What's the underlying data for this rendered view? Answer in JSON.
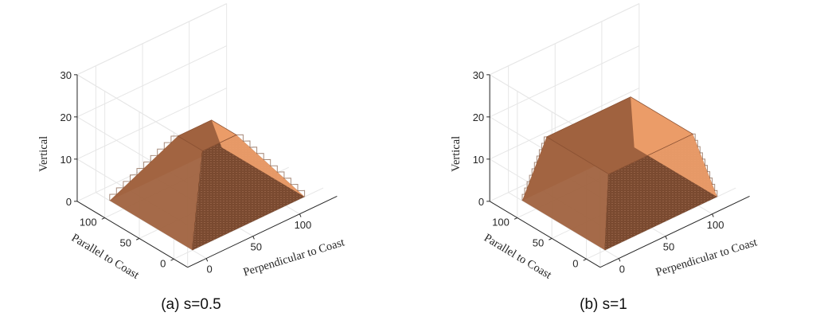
{
  "chart_data": [
    {
      "type": "surface3d",
      "caption": "(a) s=0.5",
      "xlabel": "Perpendicular to Coast",
      "ylabel": "Parallel to Coast",
      "zlabel": "Vertical",
      "xticks": [
        "0",
        "50",
        "100"
      ],
      "yticks": [
        "0",
        "50",
        "100"
      ],
      "zticks": [
        "0",
        "10",
        "20",
        "30"
      ],
      "xlim": [
        -20,
        140
      ],
      "ylim": [
        -20,
        140
      ],
      "zlim": [
        0,
        30
      ],
      "grid": true,
      "view": {
        "azimuth": -37.5,
        "elevation": 30
      },
      "shape": "stepped-frustum",
      "base": {
        "x": [
          0,
          120
        ],
        "y": [
          0,
          120
        ]
      },
      "top": {
        "x": [
          42,
          78
        ],
        "y": [
          42,
          78
        ]
      },
      "height": 15,
      "colors": {
        "front_right": "#f5a46e",
        "front_left": "#7a4a30",
        "back_left": "#a0623f",
        "back_right": "#c07b50",
        "top": "#a0623f"
      }
    },
    {
      "type": "surface3d",
      "caption": "(b) s=1",
      "xlabel": "Perpendicular to Coast",
      "ylabel": "Parallel to Coast",
      "zlabel": "Vertical",
      "xticks": [
        "0",
        "50",
        "100"
      ],
      "yticks": [
        "0",
        "50",
        "100"
      ],
      "zticks": [
        "0",
        "10",
        "20",
        "30"
      ],
      "xlim": [
        -20,
        140
      ],
      "ylim": [
        -20,
        140
      ],
      "zlim": [
        0,
        30
      ],
      "grid": true,
      "view": {
        "azimuth": -37.5,
        "elevation": 30
      },
      "shape": "stepped-frustum",
      "base": {
        "x": [
          0,
          120
        ],
        "y": [
          0,
          120
        ]
      },
      "top": {
        "x": [
          15,
          105
        ],
        "y": [
          15,
          105
        ]
      },
      "height": 15,
      "colors": {
        "front_right": "#f5a46e",
        "front_left": "#7a4a30",
        "back_left": "#a0623f",
        "back_right": "#c07b50",
        "top": "#a0623f"
      }
    }
  ]
}
